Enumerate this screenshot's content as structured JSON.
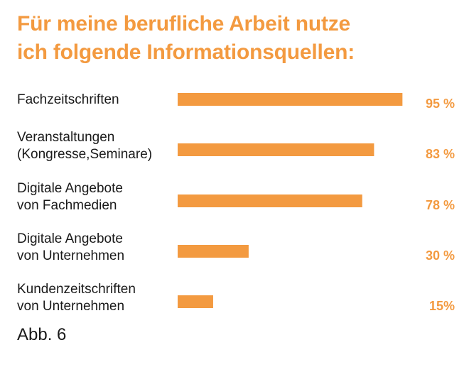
{
  "chart_data": {
    "type": "bar",
    "orientation": "horizontal",
    "title_lines": [
      "Für meine berufliche Arbeit nutze",
      "ich folgende Informationsquellen:"
    ],
    "categories": [
      [
        "Fachzeitschriften"
      ],
      [
        "Veranstaltungen",
        "(Kongresse,Seminare)"
      ],
      [
        "Digitale Angebote",
        "von Fachmedien"
      ],
      [
        "Digitale Angebote",
        "von Unternehmen"
      ],
      [
        "Kundenzeitschriften",
        "von Unternehmen"
      ]
    ],
    "values": [
      95,
      83,
      78,
      30,
      15
    ],
    "value_labels": [
      "95 %",
      "83 %",
      "78 %",
      "30 %",
      "15%"
    ],
    "unit": "%",
    "xlim": [
      0,
      100
    ],
    "bar_color": "#f39a40",
    "grid": false,
    "legend": "none"
  },
  "caption": "Abb. 6"
}
